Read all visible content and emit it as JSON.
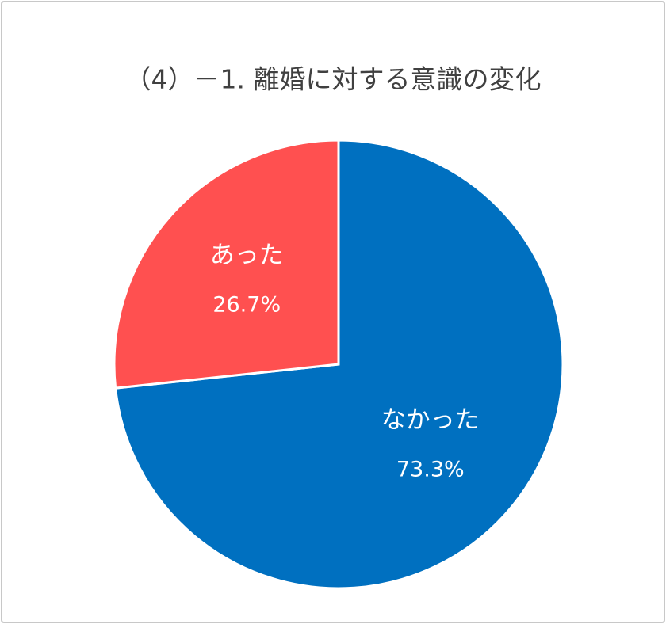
{
  "chart_data": {
    "type": "pie",
    "title": "（4）－1. 離婚に対する意識の変化",
    "categories": [
      "なかった",
      "あった"
    ],
    "values": [
      73.3,
      26.7
    ],
    "value_labels": [
      "73.3%",
      "26.7%"
    ],
    "colors": [
      "#0070c0",
      "#ff5050"
    ]
  }
}
